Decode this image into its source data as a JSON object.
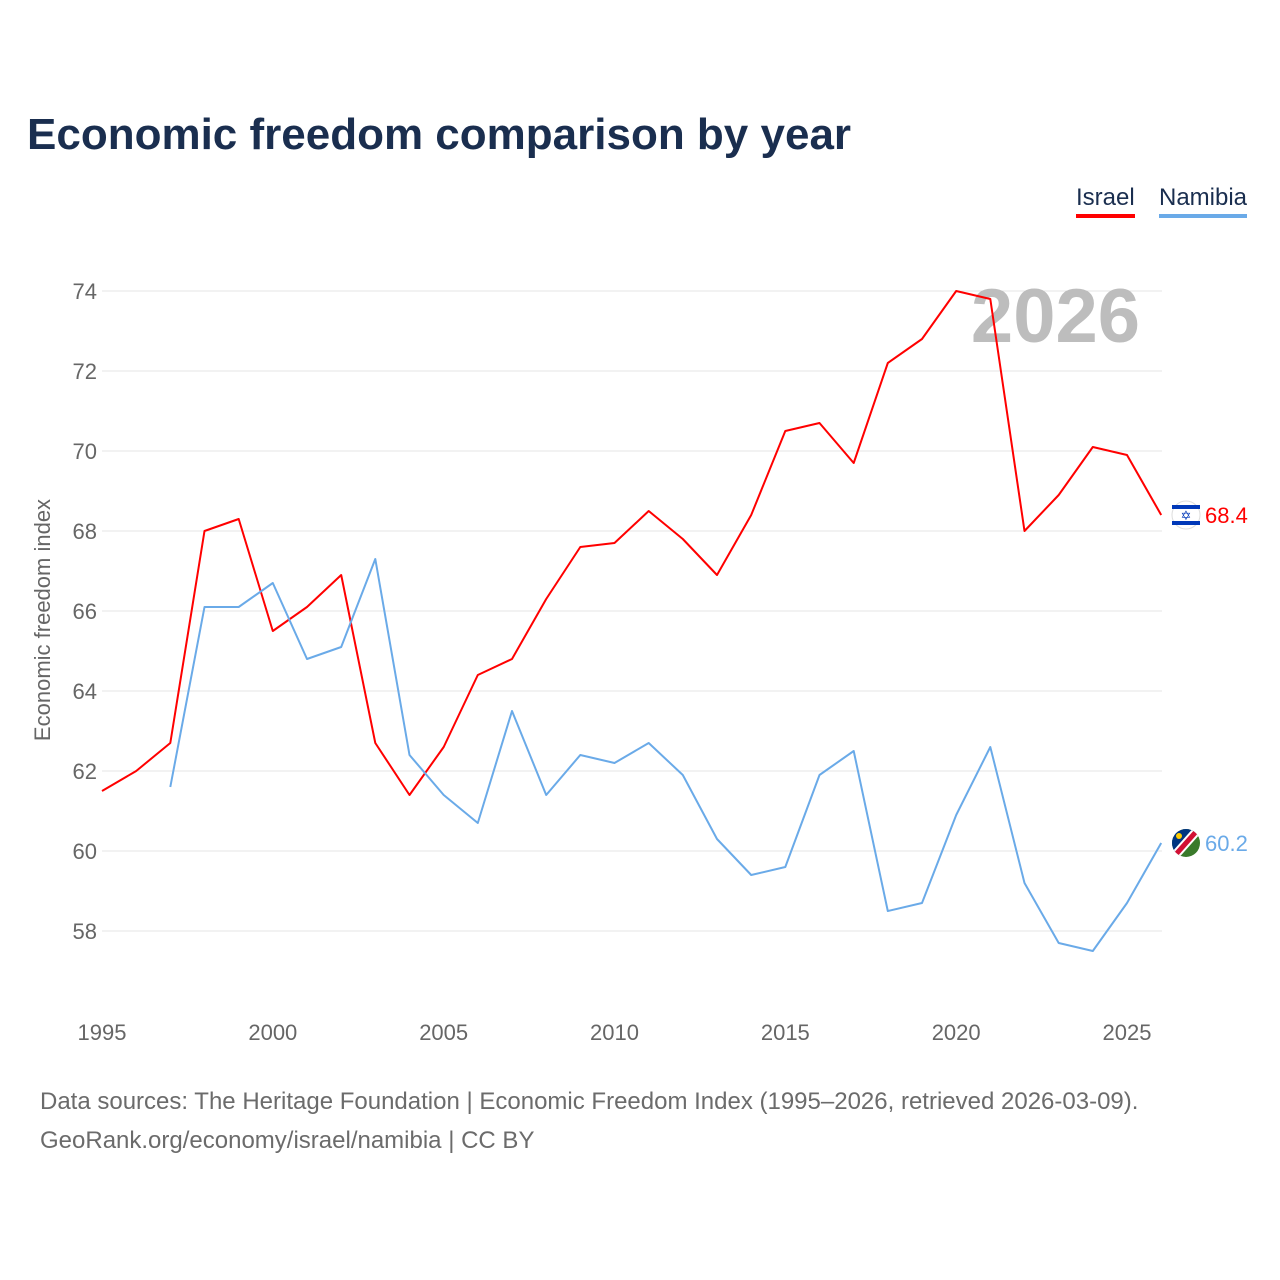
{
  "chart_data": {
    "type": "line",
    "title": "Economic freedom comparison by year",
    "ylabel": "Economic freedom index",
    "xlabel": "",
    "xlim": [
      1995,
      2026
    ],
    "ylim": [
      56.5,
      75
    ],
    "xticks": [
      1995,
      2000,
      2005,
      2010,
      2015,
      2020,
      2025
    ],
    "yticks": [
      58,
      60,
      62,
      64,
      66,
      68,
      70,
      72,
      74
    ],
    "grid": true,
    "legend_position": "top-right",
    "year_watermark": "2026",
    "series": [
      {
        "name": "Israel",
        "color": "#ff0000",
        "end_label": "68.4",
        "x": [
          1995,
          1996,
          1997,
          1998,
          1999,
          2000,
          2001,
          2002,
          2003,
          2004,
          2005,
          2006,
          2007,
          2008,
          2009,
          2010,
          2011,
          2012,
          2013,
          2014,
          2015,
          2016,
          2017,
          2018,
          2019,
          2020,
          2021,
          2022,
          2023,
          2024,
          2025,
          2026
        ],
        "values": [
          61.5,
          62.0,
          62.7,
          68.0,
          68.3,
          65.5,
          66.1,
          66.9,
          62.7,
          61.4,
          62.6,
          64.4,
          64.8,
          66.3,
          67.6,
          67.7,
          68.5,
          67.8,
          66.9,
          68.4,
          70.5,
          70.7,
          69.7,
          72.2,
          72.8,
          74.0,
          73.8,
          68.0,
          68.9,
          70.1,
          69.9,
          68.4
        ]
      },
      {
        "name": "Namibia",
        "color": "#6aaae8",
        "end_label": "60.2",
        "x": [
          1997,
          1998,
          1999,
          2000,
          2001,
          2002,
          2003,
          2004,
          2005,
          2006,
          2007,
          2008,
          2009,
          2010,
          2011,
          2012,
          2013,
          2014,
          2015,
          2016,
          2017,
          2018,
          2019,
          2020,
          2021,
          2022,
          2023,
          2024,
          2025,
          2026
        ],
        "values": [
          61.6,
          66.1,
          66.1,
          66.7,
          64.8,
          65.1,
          67.3,
          62.4,
          61.4,
          60.7,
          63.5,
          61.4,
          62.4,
          62.2,
          62.7,
          61.9,
          60.3,
          59.4,
          59.6,
          61.9,
          62.5,
          58.5,
          58.7,
          60.9,
          62.6,
          59.2,
          57.7,
          57.5,
          58.7,
          60.2
        ]
      }
    ]
  },
  "footer": {
    "line1": "Data sources: The Heritage Foundation | Economic Freedom Index (1995–2026, retrieved 2026-03-09).",
    "line2": "GeoRank.org/economy/israel/namibia | CC BY"
  }
}
